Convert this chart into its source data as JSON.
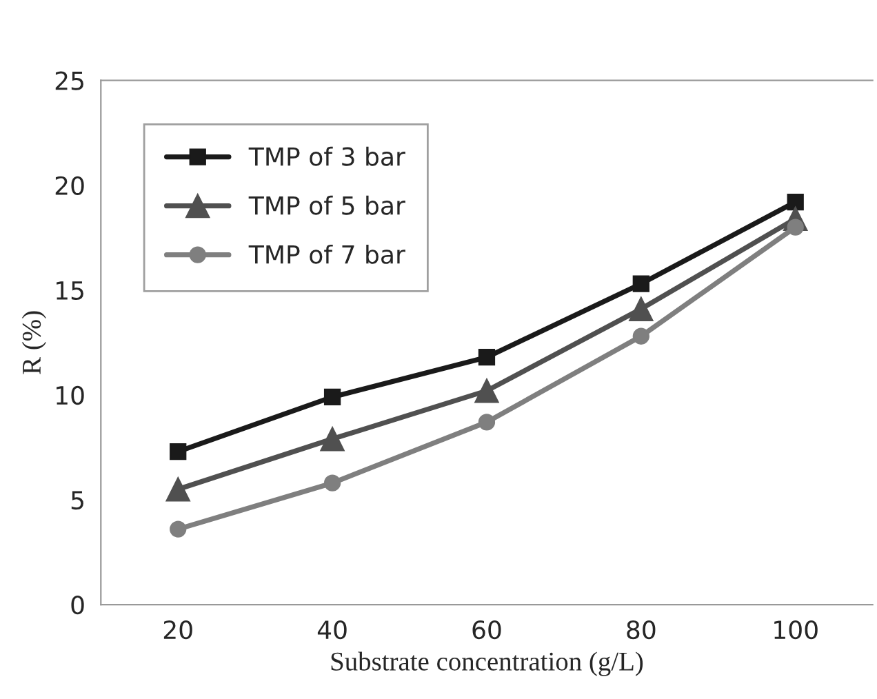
{
  "chart_data": {
    "type": "line",
    "xlabel": "Substrate concentration (g/L)",
    "ylabel": "R (%)",
    "categories": [
      "20",
      "40",
      "60",
      "80",
      "100"
    ],
    "series": [
      {
        "name": "TMP of 3 bar",
        "color": "#1a1a1a",
        "marker": "square",
        "values": [
          7.3,
          9.9,
          11.8,
          15.3,
          19.2
        ]
      },
      {
        "name": "TMP of 5 bar",
        "color": "#505050",
        "marker": "triangle",
        "values": [
          5.5,
          7.9,
          10.2,
          14.1,
          18.4
        ]
      },
      {
        "name": "TMP of 7 bar",
        "color": "#7f7f7f",
        "marker": "circle",
        "values": [
          3.6,
          5.8,
          8.7,
          12.8,
          18.0
        ]
      }
    ],
    "ylim": [
      0,
      25
    ],
    "yticks": [
      0,
      5,
      10,
      15,
      20,
      25
    ],
    "grid": false,
    "legend": "top left",
    "line_style": "solid"
  }
}
